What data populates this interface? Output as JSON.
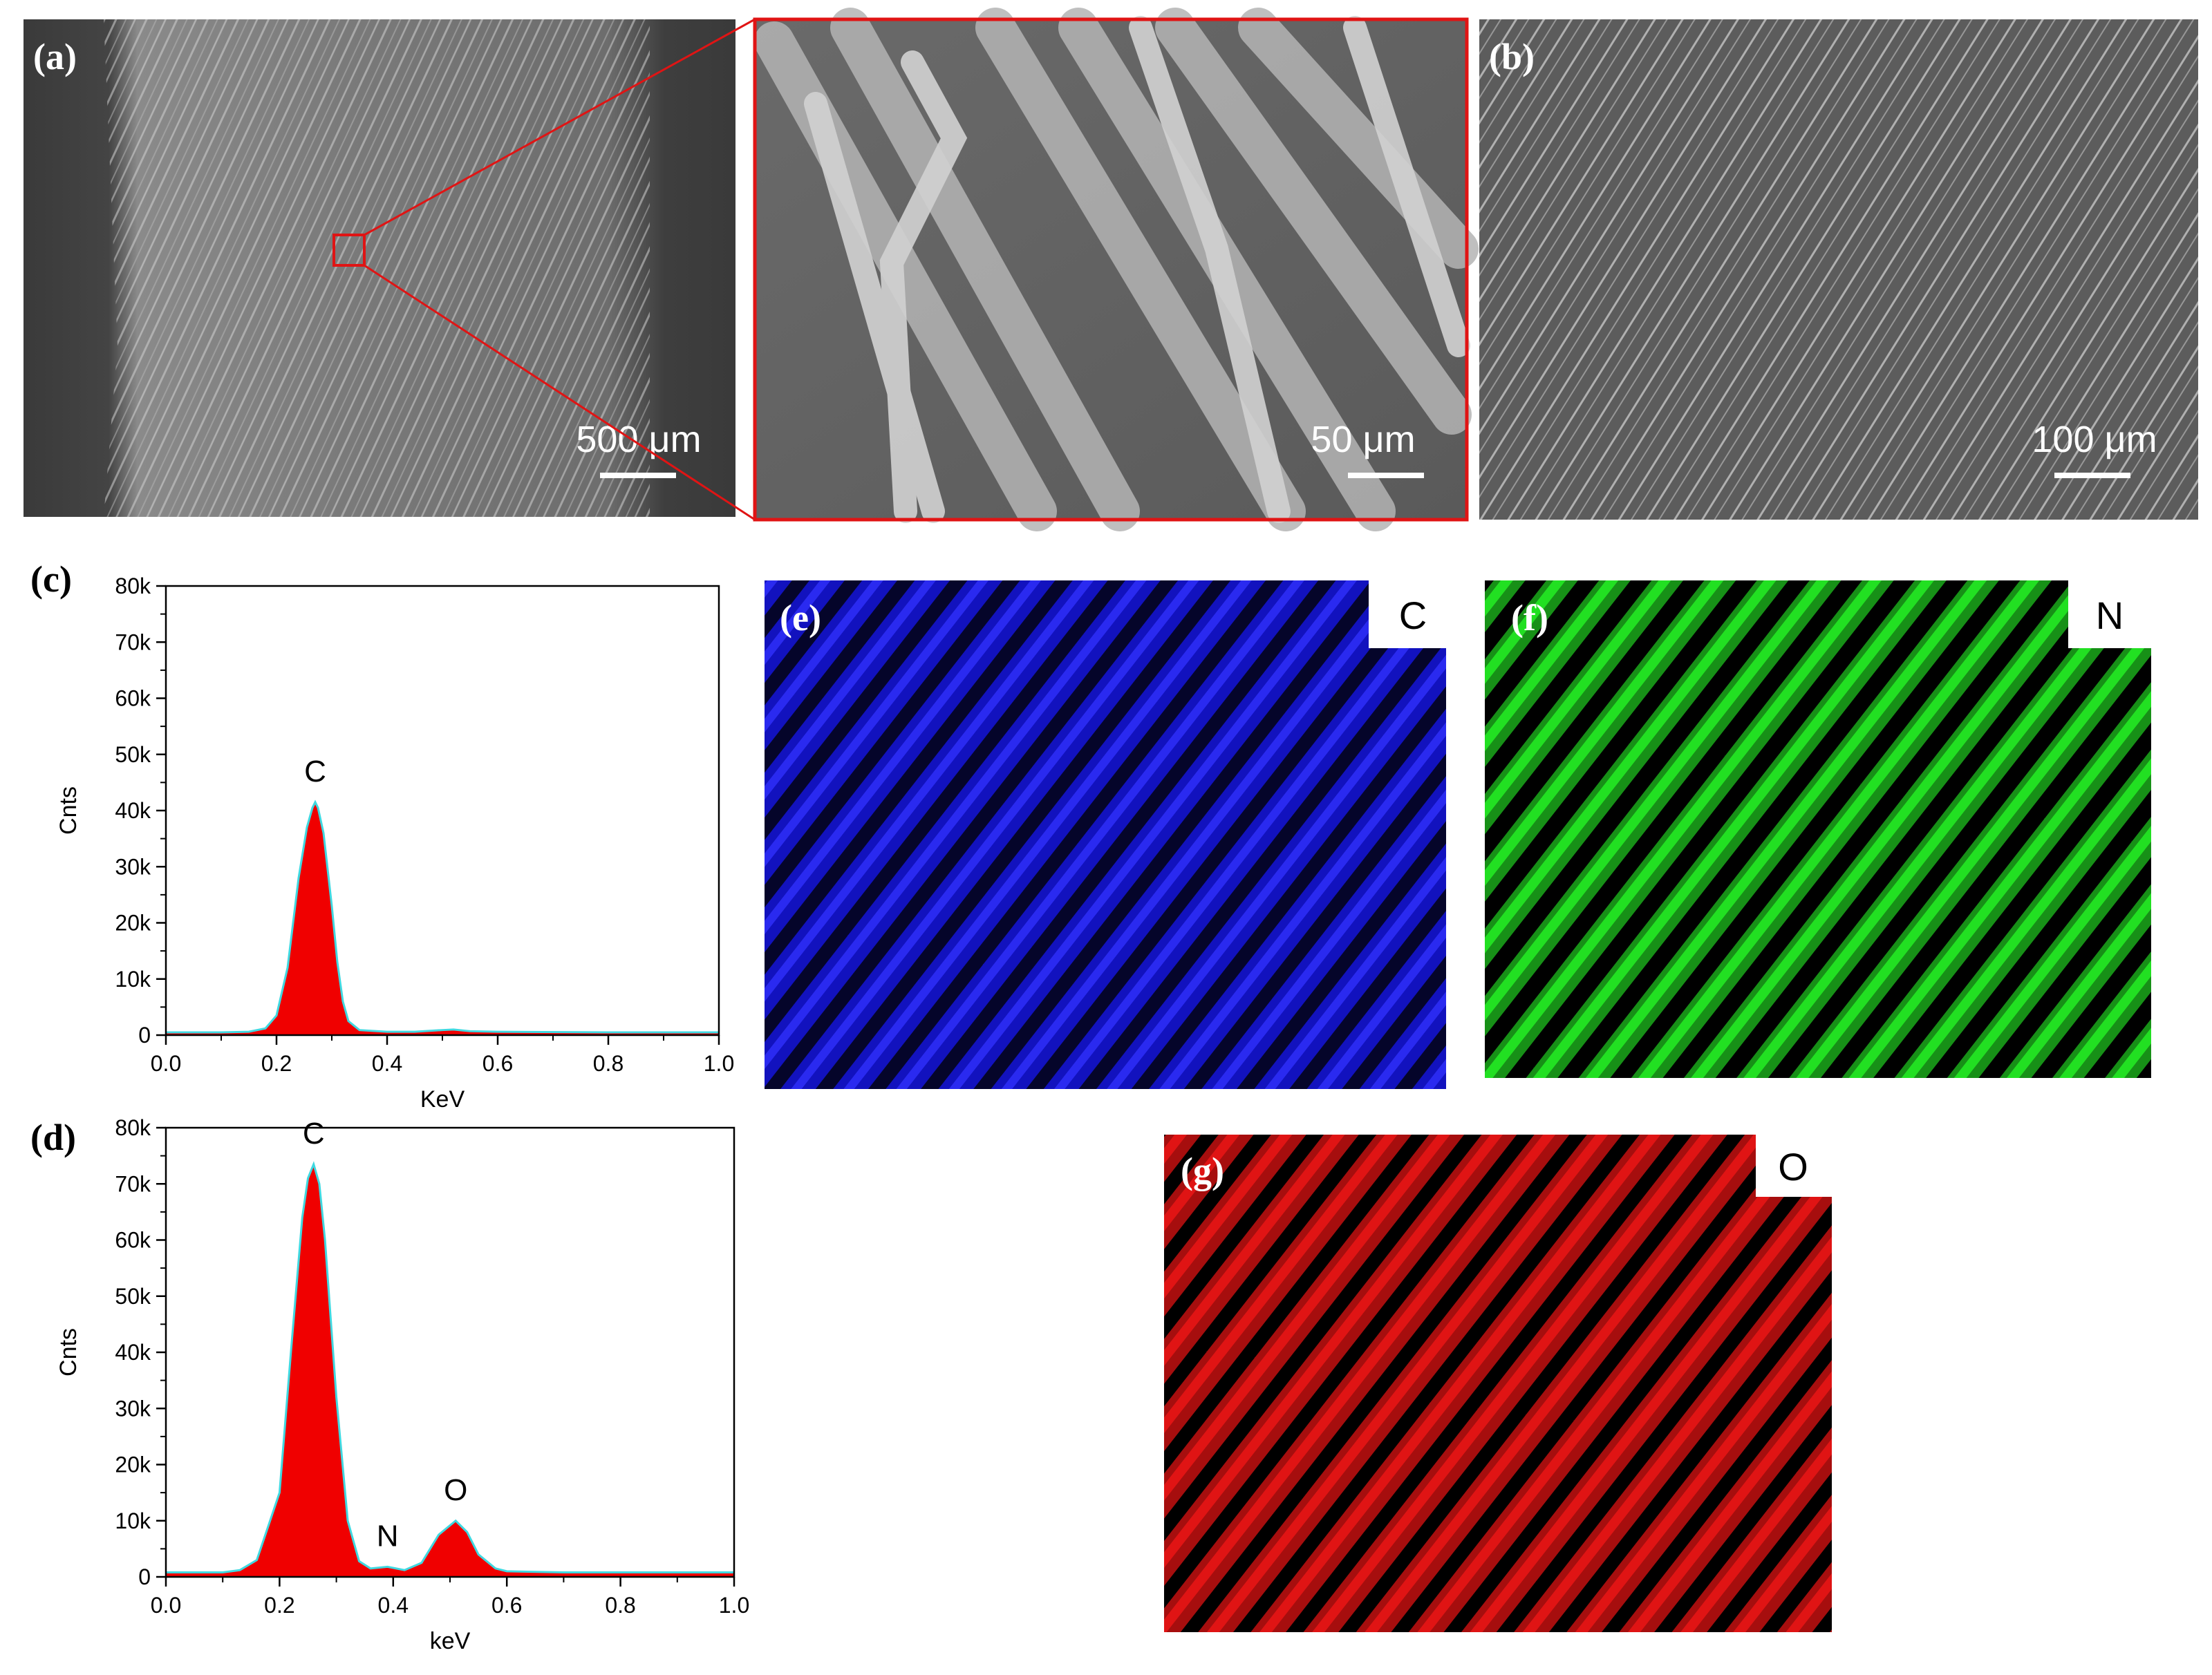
{
  "panels": {
    "a": {
      "label": "(a)",
      "scale_bar": "500 μm"
    },
    "zoom": {
      "scale_bar": "50 μm"
    },
    "b": {
      "label": "(b)",
      "scale_bar": "100 μm"
    },
    "c": {
      "label": "(c)"
    },
    "d": {
      "label": "(d)"
    },
    "e": {
      "label": "(e)",
      "element": "C",
      "color": "#1414d8"
    },
    "f": {
      "label": "(f)",
      "element": "N",
      "color": "#22e022"
    },
    "g": {
      "label": "(g)",
      "element": "O",
      "color": "#e01414"
    }
  },
  "colors": {
    "zoom_frame": "#e01414",
    "peak_fill": "#f00000",
    "peak_line": "#40d8e0"
  },
  "chart_data": [
    {
      "panel": "(c)",
      "type": "area",
      "xlabel": "KeV",
      "ylabel": "Cnts",
      "xlim": [
        0.0,
        1.0
      ],
      "ylim": [
        0,
        80000
      ],
      "xticks": [
        "0.0",
        "0.2",
        "0.4",
        "0.6",
        "0.8",
        "1.0"
      ],
      "yticks": [
        "0",
        "10k",
        "20k",
        "30k",
        "40k",
        "50k",
        "60k",
        "70k",
        "80k"
      ],
      "annotations": [
        {
          "text": "C",
          "x": 0.27,
          "y": 41500
        }
      ],
      "x": [
        0.0,
        0.1,
        0.15,
        0.18,
        0.2,
        0.22,
        0.24,
        0.255,
        0.265,
        0.27,
        0.275,
        0.285,
        0.3,
        0.31,
        0.32,
        0.33,
        0.35,
        0.4,
        0.45,
        0.5,
        0.52,
        0.55,
        0.6,
        0.8,
        1.0
      ],
      "y": [
        500,
        500,
        600,
        1200,
        3500,
        12000,
        28000,
        37000,
        40500,
        41500,
        40500,
        36000,
        23000,
        13000,
        6000,
        2500,
        900,
        600,
        600,
        900,
        1000,
        700,
        600,
        500,
        500
      ]
    },
    {
      "panel": "(d)",
      "type": "area",
      "xlabel": "keV",
      "ylabel": "Cnts",
      "xlim": [
        0.0,
        1.0
      ],
      "ylim": [
        0,
        80000
      ],
      "xticks": [
        "0.0",
        "0.2",
        "0.4",
        "0.6",
        "0.8",
        "1.0"
      ],
      "yticks": [
        "0",
        "10k",
        "20k",
        "30k",
        "40k",
        "50k",
        "60k",
        "70k",
        "80k"
      ],
      "annotations": [
        {
          "text": "C",
          "x": 0.26,
          "y": 73500
        },
        {
          "text": "N",
          "x": 0.39,
          "y": 1800
        },
        {
          "text": "O",
          "x": 0.51,
          "y": 10000
        }
      ],
      "x": [
        0.0,
        0.1,
        0.13,
        0.16,
        0.2,
        0.22,
        0.24,
        0.25,
        0.26,
        0.27,
        0.28,
        0.3,
        0.32,
        0.34,
        0.36,
        0.39,
        0.42,
        0.45,
        0.48,
        0.51,
        0.53,
        0.55,
        0.58,
        0.6,
        0.7,
        0.8,
        1.0
      ],
      "y": [
        800,
        800,
        1200,
        3000,
        15000,
        40000,
        64000,
        71000,
        73500,
        70000,
        60000,
        32000,
        10000,
        2800,
        1500,
        1800,
        1200,
        2500,
        7500,
        10000,
        8000,
        4000,
        1500,
        1000,
        800,
        800,
        800
      ]
    }
  ]
}
